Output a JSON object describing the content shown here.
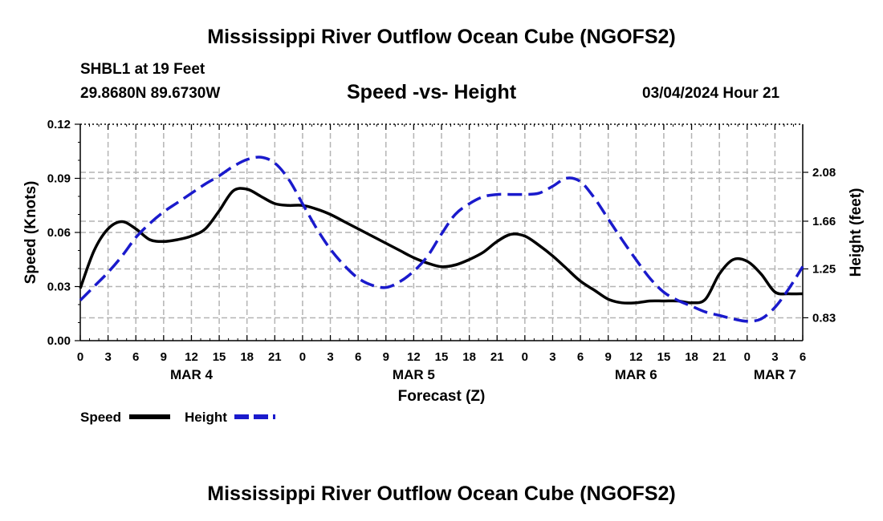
{
  "header": {
    "title": "Mississippi River Outflow Ocean Cube (NGOFS2)",
    "station": "SHBL1 at 19 Feet",
    "coordinates": "29.8680N  89.6730W",
    "date": "03/04/2024 Hour 21"
  },
  "footer": {
    "title": "Mississippi River Outflow Ocean Cube (NGOFS2)"
  },
  "colors": {
    "speed": "#000000",
    "height": "#1a1acc",
    "grid": "#b4b4b4"
  },
  "chart_data": {
    "type": "line",
    "title": "Speed -vs- Height",
    "xlabel": "Forecast (Z)",
    "ylabel": "Speed (Knots)",
    "y2label": "Height (feet)",
    "x_unit": "hours from Mar 4 00Z",
    "xlim": [
      0,
      78
    ],
    "ylim": [
      0,
      0.12
    ],
    "y2lim": [
      0.6333,
      2.4933
    ],
    "x_ticks": [
      0,
      3,
      6,
      9,
      12,
      15,
      18,
      21,
      24,
      27,
      30,
      33,
      36,
      39,
      42,
      45,
      48,
      51,
      54,
      57,
      60,
      63,
      66,
      69,
      72,
      75,
      78
    ],
    "x_tick_labels": [
      "0",
      "3",
      "6",
      "9",
      "12",
      "15",
      "18",
      "21",
      "0",
      "3",
      "6",
      "9",
      "12",
      "15",
      "18",
      "21",
      "0",
      "3",
      "6",
      "9",
      "12",
      "15",
      "18",
      "21",
      "0",
      "3",
      "6"
    ],
    "day_labels": [
      {
        "x": 12,
        "label": "MAR 4"
      },
      {
        "x": 36,
        "label": "MAR 5"
      },
      {
        "x": 60,
        "label": "MAR 6"
      },
      {
        "x": 75,
        "label": "MAR 7"
      }
    ],
    "y_ticks": [
      0,
      0.03,
      0.06,
      0.09,
      0.12
    ],
    "y_tick_labels": [
      "0.00",
      "0.03",
      "0.06",
      "0.09",
      "0.12"
    ],
    "y2_ticks": [
      0.83,
      1.25,
      1.66,
      2.08
    ],
    "y2_tick_labels": [
      "0.83",
      "1.25",
      "1.66",
      "2.08"
    ],
    "series": [
      {
        "name": "Speed",
        "axis": "left",
        "style": "solid",
        "x": [
          0,
          1.5,
          3,
          4.5,
          6,
          7.5,
          9,
          10.5,
          12,
          13.5,
          15,
          16.5,
          18,
          19.5,
          21,
          22.5,
          24,
          25.5,
          27,
          28.5,
          30,
          31.5,
          33,
          34.5,
          36,
          37.5,
          39,
          40.5,
          42,
          43.5,
          45,
          46.5,
          48,
          49.5,
          51,
          52.5,
          54,
          55.5,
          57,
          58.5,
          60,
          61.5,
          63,
          64.5,
          66,
          67.5,
          69,
          70.5,
          72,
          73.5,
          75,
          76.5,
          78
        ],
        "values": [
          0.029,
          0.05,
          0.062,
          0.066,
          0.062,
          0.056,
          0.055,
          0.056,
          0.058,
          0.062,
          0.072,
          0.083,
          0.084,
          0.08,
          0.076,
          0.075,
          0.075,
          0.073,
          0.07,
          0.066,
          0.062,
          0.058,
          0.054,
          0.05,
          0.046,
          0.043,
          0.041,
          0.042,
          0.045,
          0.049,
          0.055,
          0.059,
          0.058,
          0.053,
          0.047,
          0.04,
          0.033,
          0.028,
          0.023,
          0.021,
          0.021,
          0.022,
          0.022,
          0.022,
          0.021,
          0.023,
          0.037,
          0.045,
          0.044,
          0.037,
          0.027,
          0.026,
          0.026
        ]
      },
      {
        "name": "Height",
        "axis": "right",
        "style": "dashed",
        "x": [
          0,
          1.5,
          3,
          4.5,
          6,
          7.5,
          9,
          10.5,
          12,
          13.5,
          15,
          16.5,
          18,
          19.5,
          21,
          22.5,
          24,
          25.5,
          27,
          28.5,
          30,
          31.5,
          33,
          34.5,
          36,
          37.5,
          39,
          40.5,
          42,
          43.5,
          45,
          46.5,
          48,
          49.5,
          51,
          52.5,
          54,
          55.5,
          57,
          58.5,
          60,
          61.5,
          63,
          64.5,
          66,
          67.5,
          69,
          70.5,
          72,
          73.5,
          75,
          76.5,
          78
        ],
        "values": [
          0.98,
          1.1,
          1.22,
          1.36,
          1.52,
          1.64,
          1.74,
          1.82,
          1.9,
          1.98,
          2.05,
          2.13,
          2.19,
          2.21,
          2.16,
          2.02,
          1.81,
          1.6,
          1.42,
          1.28,
          1.17,
          1.11,
          1.09,
          1.14,
          1.23,
          1.36,
          1.55,
          1.72,
          1.81,
          1.87,
          1.89,
          1.89,
          1.89,
          1.9,
          1.96,
          2.03,
          2.0,
          1.86,
          1.68,
          1.5,
          1.33,
          1.17,
          1.05,
          0.98,
          0.93,
          0.88,
          0.85,
          0.82,
          0.8,
          0.82,
          0.92,
          1.08,
          1.27
        ]
      }
    ],
    "legend": [
      {
        "label": "Speed",
        "style": "solid"
      },
      {
        "label": "Height",
        "style": "dashed"
      }
    ]
  }
}
